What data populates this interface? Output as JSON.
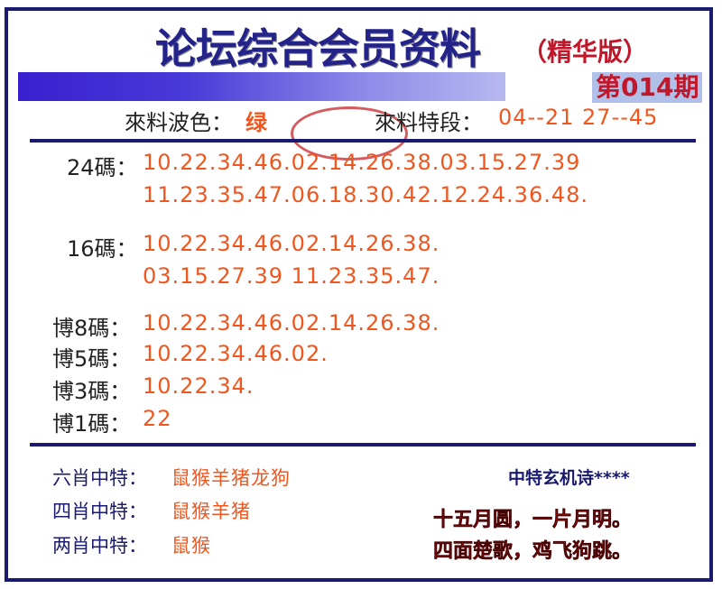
{
  "header": {
    "title": "论坛综合会员资料",
    "edition": "（精华版）",
    "issue": "第014期"
  },
  "info": {
    "wave_label": "來料波色：",
    "wave_value": "绿",
    "segment_label": "來料特段：",
    "segment_value": "04--21  27--45"
  },
  "codes": [
    {
      "label": "24碼：",
      "lines": [
        "10.22.34.46.02.14.26.38.03.15.27.39",
        "11.23.35.47.06.18.30.42.12.24.36.48."
      ]
    },
    {
      "label": "16碼：",
      "lines": [
        "10.22.34.46.02.14.26.38.",
        "03.15.27.39  11.23.35.47."
      ]
    },
    {
      "label": "博8碼：",
      "lines": [
        "10.22.34.46.02.14.26.38."
      ]
    },
    {
      "label": "博5碼：",
      "lines": [
        "10.22.34.46.02."
      ]
    },
    {
      "label": "博3碼：",
      "lines": [
        "10.22.34."
      ]
    },
    {
      "label": "博1碼：",
      "lines": [
        "22"
      ]
    }
  ],
  "zodiac": [
    {
      "label": "六肖中特：",
      "value": "鼠猴羊猪龙狗"
    },
    {
      "label": "四肖中特：",
      "value": "鼠猴羊猪"
    },
    {
      "label": "两肖中特：",
      "value": "鼠猴"
    }
  ],
  "poem": {
    "title": "中特玄机诗****",
    "lines": [
      "十五月圆，一片月明。",
      "四面楚歌，鸡飞狗跳。"
    ]
  },
  "colors": {
    "navy": "#1a1a70",
    "orange": "#f0561e",
    "red": "#c8101c"
  }
}
